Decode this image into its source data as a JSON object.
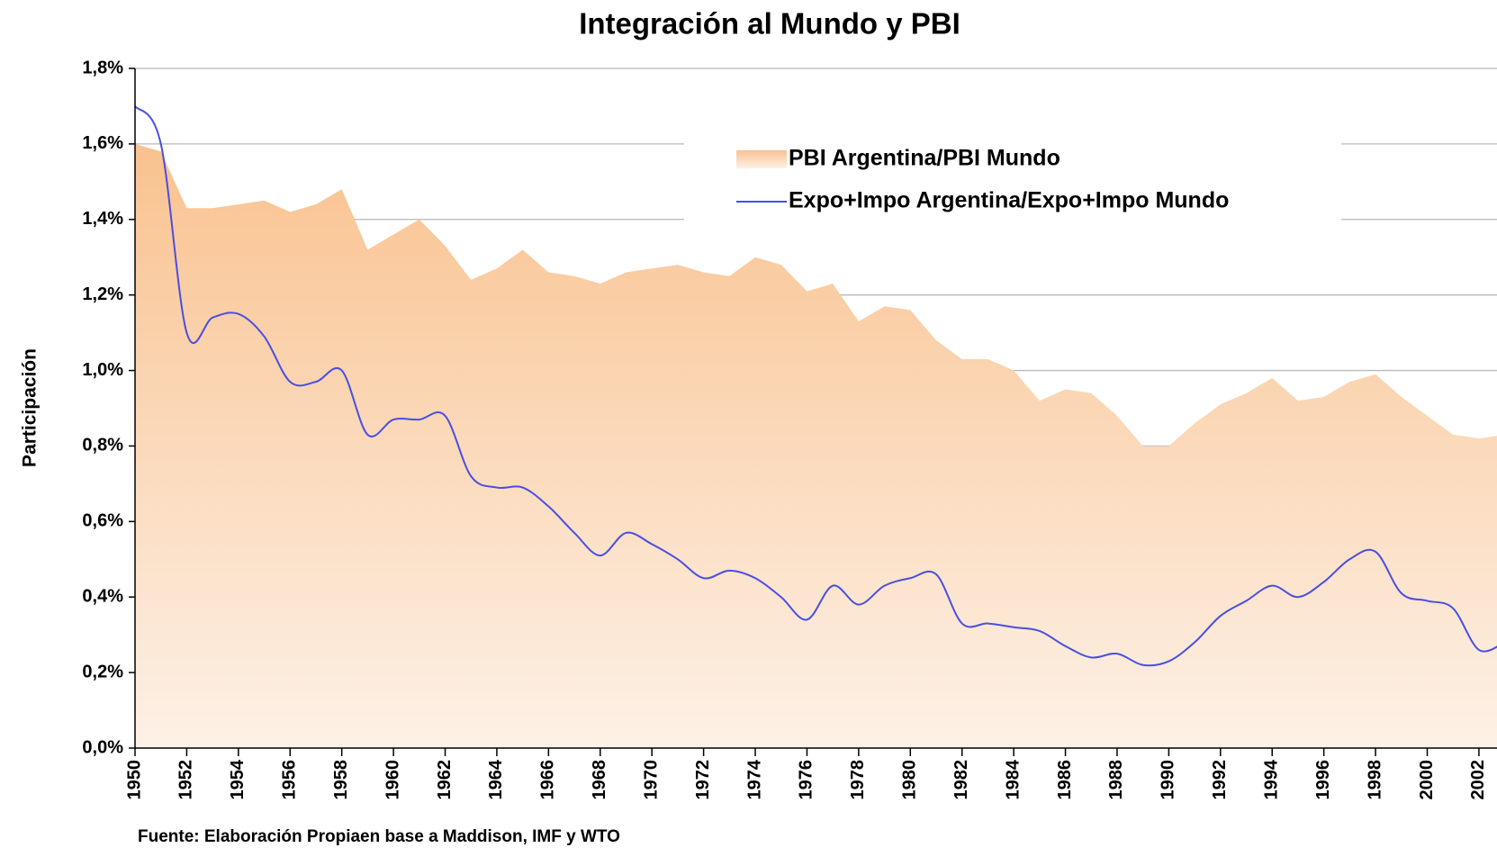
{
  "chart_data": {
    "type": "area-line",
    "title": "Integración al Mundo y PBI",
    "ylabel": "Participación",
    "source": "Fuente: Elaboración Propiaen base a Maddison, IMF y WTO",
    "x": [
      1950,
      1951,
      1952,
      1953,
      1954,
      1955,
      1956,
      1957,
      1958,
      1959,
      1960,
      1961,
      1962,
      1963,
      1964,
      1965,
      1966,
      1967,
      1968,
      1969,
      1970,
      1971,
      1972,
      1973,
      1974,
      1975,
      1976,
      1977,
      1978,
      1979,
      1980,
      1981,
      1982,
      1983,
      1984,
      1985,
      1986,
      1987,
      1988,
      1989,
      1990,
      1991,
      1992,
      1993,
      1994,
      1995,
      1996,
      1997,
      1998,
      1999,
      2000,
      2001,
      2002,
      2003
    ],
    "series": [
      {
        "name": "PBI Argentina/PBI Mundo",
        "kind": "area",
        "color": "#f9c28f",
        "values": [
          1.6,
          1.58,
          1.43,
          1.43,
          1.44,
          1.45,
          1.42,
          1.44,
          1.48,
          1.32,
          1.36,
          1.4,
          1.33,
          1.24,
          1.27,
          1.32,
          1.26,
          1.25,
          1.23,
          1.26,
          1.27,
          1.28,
          1.26,
          1.25,
          1.3,
          1.28,
          1.21,
          1.23,
          1.13,
          1.17,
          1.16,
          1.08,
          1.03,
          1.03,
          1.0,
          0.92,
          0.95,
          0.94,
          0.88,
          0.8,
          0.8,
          0.86,
          0.91,
          0.94,
          0.98,
          0.92,
          0.93,
          0.97,
          0.99,
          0.93,
          0.88,
          0.83,
          0.82,
          0.83
        ]
      },
      {
        "name": "Expo+Impo Argentina/Expo+Impo Mundo",
        "kind": "line",
        "color": "#4a4ee0",
        "values": [
          1.7,
          1.6,
          1.1,
          1.14,
          1.15,
          1.09,
          0.97,
          0.97,
          1.0,
          0.83,
          0.87,
          0.87,
          0.88,
          0.72,
          0.69,
          0.69,
          0.64,
          0.57,
          0.51,
          0.57,
          0.54,
          0.5,
          0.45,
          0.47,
          0.45,
          0.4,
          0.34,
          0.43,
          0.38,
          0.43,
          0.45,
          0.46,
          0.33,
          0.33,
          0.32,
          0.31,
          0.27,
          0.24,
          0.25,
          0.22,
          0.23,
          0.28,
          0.35,
          0.39,
          0.43,
          0.4,
          0.44,
          0.5,
          0.52,
          0.41,
          0.39,
          0.37,
          0.26,
          0.28
        ]
      }
    ],
    "xlim": [
      1950,
      2002.7
    ],
    "xticks": [
      1950,
      1952,
      1954,
      1956,
      1958,
      1960,
      1962,
      1964,
      1966,
      1968,
      1970,
      1972,
      1974,
      1976,
      1978,
      1980,
      1982,
      1984,
      1986,
      1988,
      1990,
      1992,
      1994,
      1996,
      1998,
      2000,
      2002
    ],
    "ylim": [
      0,
      1.8
    ],
    "yticks": [
      {
        "value": 0,
        "label": "0,0%"
      },
      {
        "value": 0.2,
        "label": "0,2%"
      },
      {
        "value": 0.4,
        "label": "0,4%"
      },
      {
        "value": 0.6,
        "label": "0,6%"
      },
      {
        "value": 0.8,
        "label": "0,8%"
      },
      {
        "value": 1.0,
        "label": "1,0%"
      },
      {
        "value": 1.2,
        "label": "1,2%"
      },
      {
        "value": 1.4,
        "label": "1,4%"
      },
      {
        "value": 1.6,
        "label": "1,6%"
      },
      {
        "value": 1.8,
        "label": "1,8%"
      }
    ],
    "grid": true,
    "legend": "upper center"
  }
}
